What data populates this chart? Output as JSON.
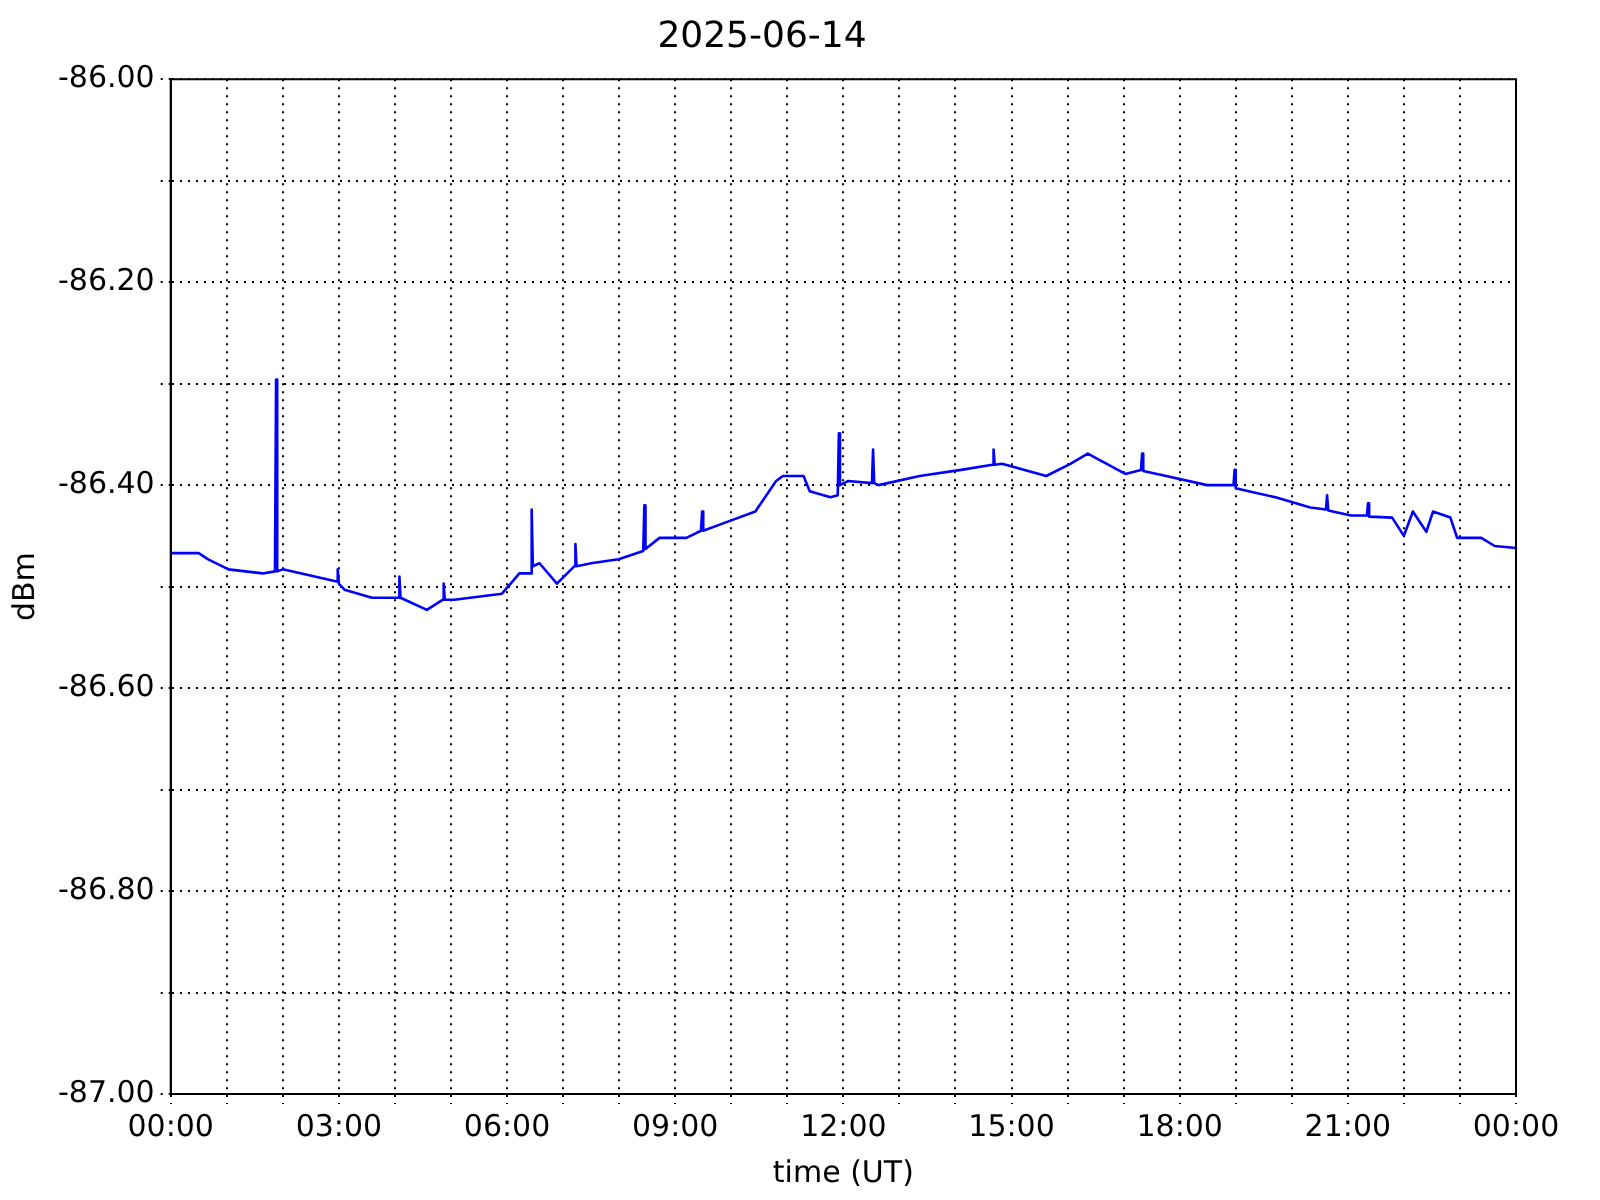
{
  "chart_data": {
    "type": "line",
    "title": "2025-06-14",
    "xlabel": "time (UT)",
    "ylabel": "dBm",
    "xlim": [
      0,
      24
    ],
    "ylim": [
      -87,
      -86
    ],
    "xticks": [
      {
        "value": 0,
        "label": "00:00"
      },
      {
        "value": 1,
        "label": null
      },
      {
        "value": 2,
        "label": null
      },
      {
        "value": 3,
        "label": "03:00"
      },
      {
        "value": 4,
        "label": null
      },
      {
        "value": 5,
        "label": null
      },
      {
        "value": 6,
        "label": "06:00"
      },
      {
        "value": 7,
        "label": null
      },
      {
        "value": 8,
        "label": null
      },
      {
        "value": 9,
        "label": "09:00"
      },
      {
        "value": 10,
        "label": null
      },
      {
        "value": 11,
        "label": null
      },
      {
        "value": 12,
        "label": "12:00"
      },
      {
        "value": 13,
        "label": null
      },
      {
        "value": 14,
        "label": null
      },
      {
        "value": 15,
        "label": "15:00"
      },
      {
        "value": 16,
        "label": null
      },
      {
        "value": 17,
        "label": null
      },
      {
        "value": 18,
        "label": "18:00"
      },
      {
        "value": 19,
        "label": null
      },
      {
        "value": 20,
        "label": null
      },
      {
        "value": 21,
        "label": "21:00"
      },
      {
        "value": 22,
        "label": null
      },
      {
        "value": 23,
        "label": null
      },
      {
        "value": 24,
        "label": "00:00"
      }
    ],
    "yticks": [
      {
        "value": -87,
        "label": "-87.00"
      },
      {
        "value": -86.9,
        "label": null
      },
      {
        "value": -86.8,
        "label": "-86.80"
      },
      {
        "value": -86.7,
        "label": null
      },
      {
        "value": -86.6,
        "label": "-86.60"
      },
      {
        "value": -86.5,
        "label": null
      },
      {
        "value": -86.4,
        "label": "-86.40"
      },
      {
        "value": -86.3,
        "label": null
      },
      {
        "value": -86.2,
        "label": "-86.20"
      },
      {
        "value": -86.1,
        "label": null
      },
      {
        "value": -86,
        "label": "-86.00"
      }
    ],
    "grid": true,
    "legend": false,
    "marker": "none",
    "line_style": "solid",
    "series": [
      {
        "color": "#0000ff",
        "x": [
          0,
          0.5,
          0.66,
          1.03,
          1.64,
          1.86,
          1.88,
          1.9,
          2.0,
          2.96,
          2.98,
          3.0,
          3.1,
          3.59,
          4.06,
          4.08,
          4.1,
          4.57,
          4.85,
          4.87,
          4.89,
          5.06,
          5.91,
          6.22,
          6.42,
          6.44,
          6.46,
          6.58,
          6.89,
          7.2,
          7.22,
          7.24,
          7.5,
          7.99,
          8.43,
          8.45,
          8.47,
          8.72,
          9.2,
          9.46,
          9.48,
          9.5,
          9.94,
          10.43,
          10.8,
          10.92,
          11.29,
          11.4,
          11.77,
          11.9,
          11.92,
          11.94,
          12.08,
          12.51,
          12.53,
          12.55,
          12.63,
          13.36,
          14.1,
          14.66,
          14.68,
          14.7,
          14.83,
          15.62,
          16.05,
          16.36,
          17.03,
          17.31,
          17.33,
          17.35,
          17.76,
          18.49,
          18.96,
          18.98,
          19.0,
          19.23,
          19.71,
          20.33,
          20.61,
          20.63,
          20.65,
          21.06,
          21.34,
          21.36,
          21.38,
          21.79,
          22.0,
          22.16,
          22.4,
          22.52,
          22.83,
          22.95,
          23.38,
          23.62,
          24
        ],
        "values": [
          -86.467,
          -86.467,
          -86.473,
          -86.483,
          -86.487,
          -86.485,
          -86.296,
          -86.485,
          -86.483,
          -86.495,
          -86.483,
          -86.497,
          -86.503,
          -86.511,
          -86.511,
          -86.49,
          -86.511,
          -86.523,
          -86.513,
          -86.497,
          -86.513,
          -86.513,
          -86.507,
          -86.487,
          -86.487,
          -86.424,
          -86.48,
          -86.477,
          -86.497,
          -86.48,
          -86.458,
          -86.48,
          -86.477,
          -86.473,
          -86.465,
          -86.42,
          -86.463,
          -86.452,
          -86.452,
          -86.445,
          -86.426,
          -86.445,
          -86.436,
          -86.426,
          -86.396,
          -86.391,
          -86.391,
          -86.406,
          -86.412,
          -86.41,
          -86.349,
          -86.4,
          -86.396,
          -86.398,
          -86.365,
          -86.398,
          -86.4,
          -86.391,
          -86.385,
          -86.38,
          -86.365,
          -86.38,
          -86.379,
          -86.391,
          -86.379,
          -86.369,
          -86.389,
          -86.385,
          -86.369,
          -86.386,
          -86.391,
          -86.4,
          -86.4,
          -86.385,
          -86.403,
          -86.406,
          -86.412,
          -86.422,
          -86.424,
          -86.41,
          -86.425,
          -86.43,
          -86.43,
          -86.418,
          -86.431,
          -86.432,
          -86.45,
          -86.426,
          -86.446,
          -86.426,
          -86.432,
          -86.452,
          -86.452,
          -86.46,
          -86.462
        ]
      }
    ]
  }
}
